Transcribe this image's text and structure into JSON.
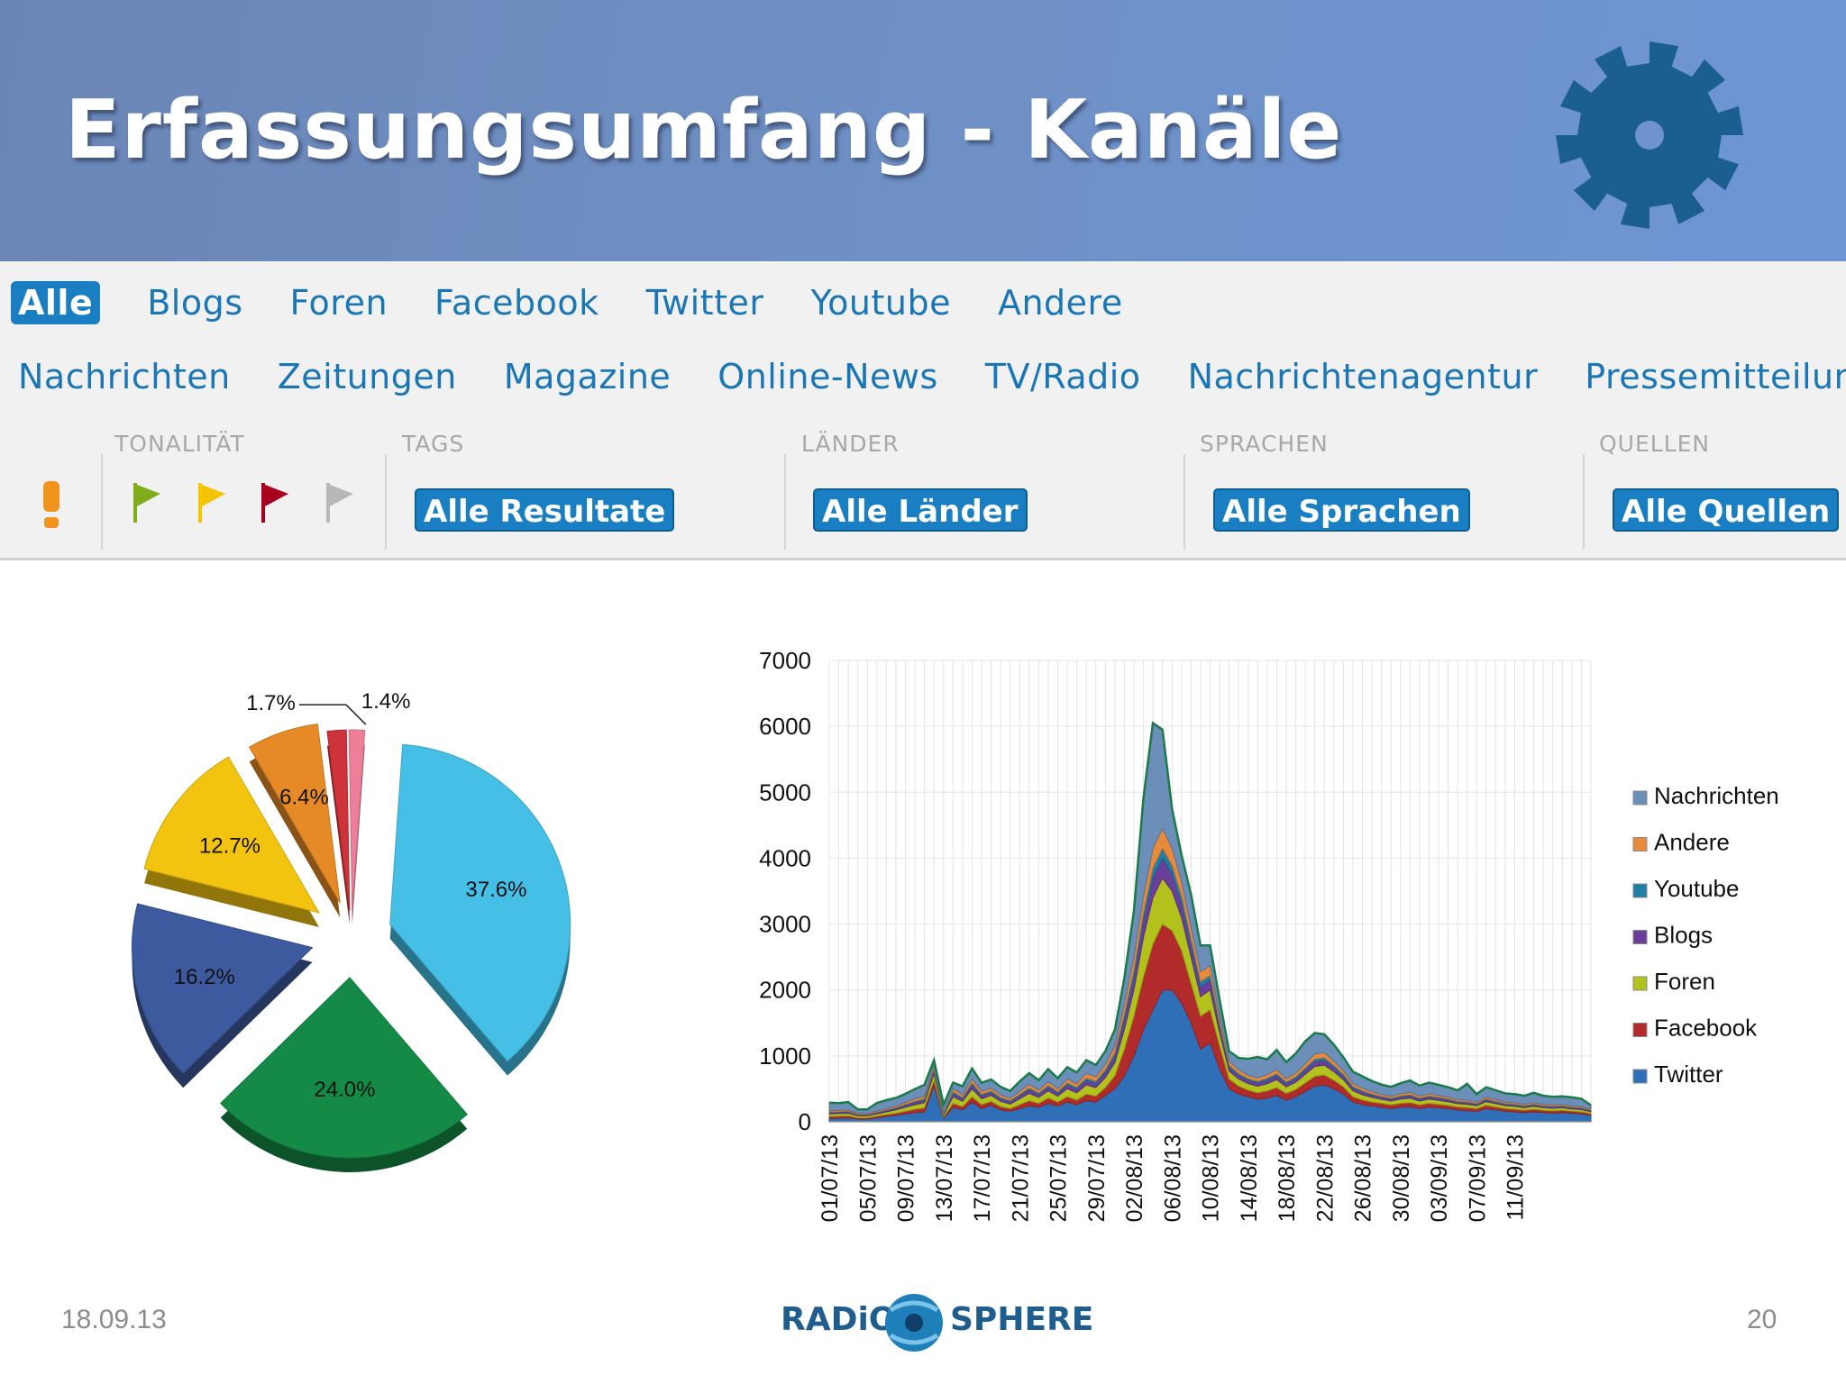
{
  "header": {
    "title": "Erfassungsumfang - Kanäle"
  },
  "tabs_row_1": [
    {
      "label": "Alle",
      "active": true
    },
    {
      "label": "Blogs"
    },
    {
      "label": "Foren"
    },
    {
      "label": "Facebook"
    },
    {
      "label": "Twitter"
    },
    {
      "label": "Youtube"
    },
    {
      "label": "Andere"
    }
  ],
  "tabs_row_2": [
    {
      "label": "Nachrichten"
    },
    {
      "label": "Zeitungen"
    },
    {
      "label": "Magazine"
    },
    {
      "label": "Online-News"
    },
    {
      "label": "TV/Radio"
    },
    {
      "label": "Nachrichtenagentur"
    },
    {
      "label": "Pressemitteilungen"
    }
  ],
  "filters": {
    "tonalitaet_label": "TONALITÄT",
    "tags_label": "TAGS",
    "laender_label": "LÄNDER",
    "sprachen_label": "SPRACHEN",
    "quellen_label": "QUELLEN",
    "tags_button": "Alle Resultate",
    "laender_button": "Alle Länder",
    "sprachen_button": "Alle Sprachen",
    "quellen_button": "Alle Quellen",
    "flag_colors": [
      "#7fad1c",
      "#f5c400",
      "#a8001e",
      "#b8b8b8"
    ],
    "warning_color": "#f0941d"
  },
  "chart_data": [
    {
      "type": "pie",
      "slices": [
        {
          "label": "37.6%",
          "value": 37.6,
          "color": "#45bfe6"
        },
        {
          "label": "24.0%",
          "value": 24.0,
          "color": "#148a46"
        },
        {
          "label": "16.2%",
          "value": 16.2,
          "color": "#3d5a9e"
        },
        {
          "label": "12.7%",
          "value": 12.7,
          "color": "#f2c40f"
        },
        {
          "label": "6.4%",
          "value": 6.4,
          "color": "#e58a26"
        },
        {
          "label": "1.7%",
          "value": 1.7,
          "color": "#cf333a"
        },
        {
          "label": "1.4%",
          "value": 1.4,
          "color": "#ee7f98"
        }
      ]
    },
    {
      "type": "area",
      "stacked": true,
      "ylim": [
        0,
        7000
      ],
      "yticks": [
        0,
        1000,
        2000,
        3000,
        4000,
        5000,
        6000,
        7000
      ],
      "grid": true,
      "legend_position": "right",
      "xtick_labels": [
        "01/07/13",
        "05/07/13",
        "09/07/13",
        "13/07/13",
        "17/07/13",
        "21/07/13",
        "25/07/13",
        "29/07/13",
        "02/08/13",
        "06/08/13",
        "10/08/13",
        "14/08/13",
        "18/08/13",
        "22/08/13",
        "26/08/13",
        "30/08/13",
        "03/09/13",
        "07/09/13",
        "11/09/13"
      ],
      "x_start": "01/07/13",
      "x_end": "13/09/13",
      "series": [
        {
          "name": "Twitter",
          "color": "#2f6fb8",
          "values": [
            50,
            55,
            60,
            40,
            40,
            60,
            80,
            100,
            120,
            140,
            150,
            550,
            50,
            220,
            180,
            300,
            200,
            250,
            180,
            160,
            200,
            240,
            220,
            280,
            240,
            300,
            260,
            320,
            300,
            400,
            500,
            700,
            1000,
            1400,
            1700,
            2000,
            2000,
            1800,
            1500,
            1100,
            1200,
            800,
            500,
            420,
            380,
            340,
            360,
            400,
            330,
            380,
            460,
            540,
            560,
            500,
            420,
            300,
            260,
            240,
            220,
            200,
            220,
            230,
            200,
            220,
            210,
            200,
            180,
            170,
            160,
            200,
            180,
            160,
            150,
            140,
            150,
            140,
            130,
            140,
            130,
            120,
            100
          ]
        },
        {
          "name": "Facebook",
          "color": "#b22b2b",
          "values": [
            30,
            30,
            30,
            20,
            20,
            25,
            30,
            30,
            40,
            50,
            60,
            80,
            20,
            60,
            50,
            80,
            60,
            60,
            50,
            40,
            60,
            80,
            60,
            80,
            60,
            80,
            70,
            100,
            90,
            120,
            200,
            400,
            600,
            800,
            1000,
            1000,
            900,
            800,
            600,
            500,
            500,
            350,
            150,
            120,
            100,
            100,
            110,
            120,
            100,
            110,
            130,
            150,
            150,
            130,
            110,
            80,
            70,
            60,
            60,
            55,
            60,
            60,
            55,
            60,
            55,
            50,
            45,
            45,
            40,
            50,
            45,
            40,
            40,
            35,
            40,
            35,
            35,
            35,
            30,
            30,
            25
          ]
        },
        {
          "name": "Foren",
          "color": "#b2c11b",
          "values": [
            40,
            40,
            40,
            30,
            30,
            35,
            40,
            50,
            60,
            70,
            80,
            100,
            30,
            100,
            80,
            120,
            90,
            90,
            80,
            70,
            90,
            110,
            90,
            110,
            90,
            120,
            110,
            140,
            130,
            150,
            200,
            300,
            400,
            600,
            700,
            700,
            600,
            500,
            400,
            300,
            300,
            200,
            120,
            110,
            100,
            100,
            110,
            120,
            100,
            110,
            130,
            150,
            150,
            130,
            110,
            90,
            80,
            70,
            60,
            60,
            65,
            70,
            60,
            65,
            60,
            55,
            50,
            50,
            45,
            55,
            50,
            45,
            45,
            40,
            45,
            40,
            40,
            40,
            35,
            35,
            30
          ]
        },
        {
          "name": "Blogs",
          "color": "#6a3e9a",
          "values": [
            20,
            20,
            20,
            15,
            15,
            18,
            20,
            25,
            30,
            35,
            40,
            50,
            15,
            50,
            40,
            60,
            45,
            45,
            40,
            35,
            45,
            55,
            45,
            55,
            45,
            60,
            55,
            70,
            65,
            80,
            100,
            150,
            200,
            250,
            300,
            300,
            260,
            220,
            180,
            150,
            150,
            100,
            60,
            55,
            50,
            50,
            55,
            60,
            50,
            55,
            65,
            75,
            75,
            65,
            55,
            45,
            40,
            35,
            30,
            30,
            32,
            35,
            30,
            32,
            30,
            28,
            25,
            25,
            22,
            28,
            25,
            22,
            22,
            20,
            22,
            20,
            20,
            20,
            18,
            18,
            15
          ]
        },
        {
          "name": "Youtube",
          "color": "#1f7fa8",
          "values": [
            10,
            10,
            10,
            8,
            8,
            9,
            10,
            12,
            15,
            18,
            20,
            25,
            8,
            25,
            20,
            30,
            22,
            22,
            20,
            18,
            22,
            28,
            22,
            28,
            22,
            30,
            28,
            35,
            32,
            40,
            50,
            80,
            100,
            120,
            150,
            150,
            130,
            110,
            90,
            75,
            75,
            50,
            30,
            28,
            25,
            25,
            28,
            30,
            25,
            28,
            32,
            38,
            38,
            32,
            28,
            22,
            20,
            18,
            15,
            15,
            16,
            18,
            15,
            16,
            15,
            14,
            12,
            12,
            11,
            14,
            12,
            11,
            11,
            10,
            11,
            10,
            10,
            10,
            9,
            9,
            8
          ]
        },
        {
          "name": "Andere",
          "color": "#e88a3c",
          "values": [
            20,
            20,
            20,
            15,
            15,
            18,
            20,
            25,
            30,
            35,
            40,
            50,
            15,
            50,
            40,
            60,
            45,
            45,
            40,
            35,
            45,
            55,
            45,
            55,
            45,
            60,
            55,
            70,
            65,
            80,
            100,
            150,
            200,
            250,
            300,
            300,
            260,
            220,
            180,
            150,
            150,
            100,
            60,
            55,
            50,
            50,
            55,
            60,
            50,
            55,
            65,
            75,
            75,
            65,
            55,
            45,
            40,
            35,
            30,
            30,
            32,
            35,
            30,
            32,
            30,
            28,
            25,
            25,
            22,
            28,
            25,
            22,
            22,
            20,
            22,
            20,
            20,
            20,
            18,
            18,
            15
          ]
        },
        {
          "name": "Nachrichten",
          "color": "#6b8fb8",
          "values": [
            120,
            110,
            120,
            60,
            60,
            120,
            130,
            120,
            130,
            150,
            170,
            80,
            120,
            90,
            130,
            160,
            130,
            130,
            120,
            110,
            150,
            170,
            150,
            190,
            160,
            180,
            170,
            200,
            180,
            200,
            250,
            400,
            700,
            1500,
            1900,
            1500,
            600,
            400,
            500,
            400,
            300,
            250,
            150,
            180,
            250,
            320,
            230,
            300,
            250,
            300,
            340,
            320,
            280,
            250,
            200,
            180,
            180,
            160,
            150,
            140,
            160,
            180,
            160,
            170,
            160,
            150,
            140,
            250,
            120,
            150,
            140,
            130,
            130,
            130,
            150,
            130,
            125,
            120,
            130,
            120,
            60
          ]
        }
      ]
    }
  ],
  "footer": {
    "date": "18.09.13",
    "page": "20",
    "brand_left": "RADiO",
    "brand_right": "SPHERE"
  }
}
